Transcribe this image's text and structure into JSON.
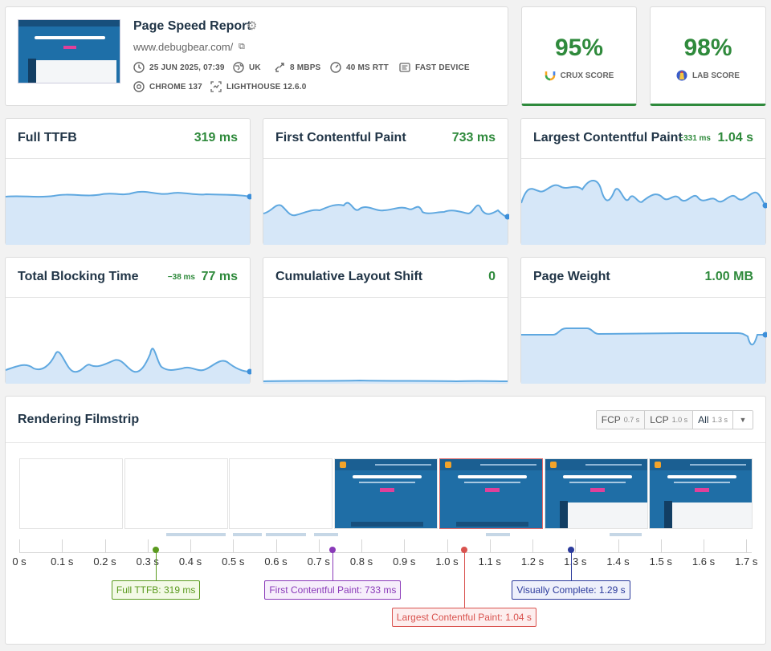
{
  "header": {
    "title": "Page Speed Report",
    "url": "www.debugbear.com/",
    "meta": {
      "date": "25 JUN 2025, 07:39",
      "location": "UK",
      "bandwidth": "8 MBPS",
      "rtt": "40 MS RTT",
      "device": "FAST DEVICE",
      "browser": "CHROME 137",
      "lighthouse": "LIGHTHOUSE 12.6.0"
    },
    "thumbnail_text": "Monitor Page Speed and Core Web Vitals"
  },
  "scores": [
    {
      "value": "95%",
      "label": "CRUX SCORE",
      "icon": "crux-icon"
    },
    {
      "value": "98%",
      "label": "LAB SCORE",
      "icon": "lighthouse-icon"
    }
  ],
  "metrics": [
    {
      "label": "Full TTFB",
      "value": "319 ms",
      "delta": ""
    },
    {
      "label": "First Contentful Paint",
      "value": "733 ms",
      "delta": ""
    },
    {
      "label": "Largest Contentful Paint",
      "value": "1.04 s",
      "delta": "−331 ms"
    },
    {
      "label": "Total Blocking Time",
      "value": "77 ms",
      "delta": "−38 ms"
    },
    {
      "label": "Cumulative Layout Shift",
      "value": "0",
      "delta": ""
    },
    {
      "label": "Page Weight",
      "value": "1.00 MB",
      "delta": ""
    }
  ],
  "filmstrip": {
    "title": "Rendering Filmstrip",
    "options": [
      {
        "label": "FCP",
        "time": "0.7 s"
      },
      {
        "label": "LCP",
        "time": "1.0 s"
      },
      {
        "label": "All",
        "time": "1.3 s"
      }
    ],
    "axis_labels": [
      "0 s",
      "0.1 s",
      "0.2 s",
      "0.3 s",
      "0.4 s",
      "0.5 s",
      "0.6 s",
      "0.7 s",
      "0.8 s",
      "0.9 s",
      "1.0 s",
      "1.1 s",
      "1.2 s",
      "1.3 s",
      "1.4 s",
      "1.5 s",
      "1.6 s",
      "1.7 s"
    ],
    "markers": [
      {
        "label": "Full TTFB: 319 ms",
        "time": 0.319,
        "color": "#5a9a1e",
        "bg": "#f3f9e6"
      },
      {
        "label": "First Contentful Paint: 733 ms",
        "time": 0.733,
        "color": "#8a3ab9",
        "bg": "#f6eefb"
      },
      {
        "label": "Largest Contentful Paint: 1.04 s",
        "time": 1.04,
        "color": "#d9534f",
        "bg": "#fdeeee"
      },
      {
        "label": "Visually Complete: 1.29 s",
        "time": 1.29,
        "color": "#2b3a9c",
        "bg": "#eef0fb"
      }
    ]
  },
  "colors": {
    "good": "#2f8a3c",
    "spark_line": "#5fa8e0",
    "spark_fill": "#d6e7f8"
  }
}
